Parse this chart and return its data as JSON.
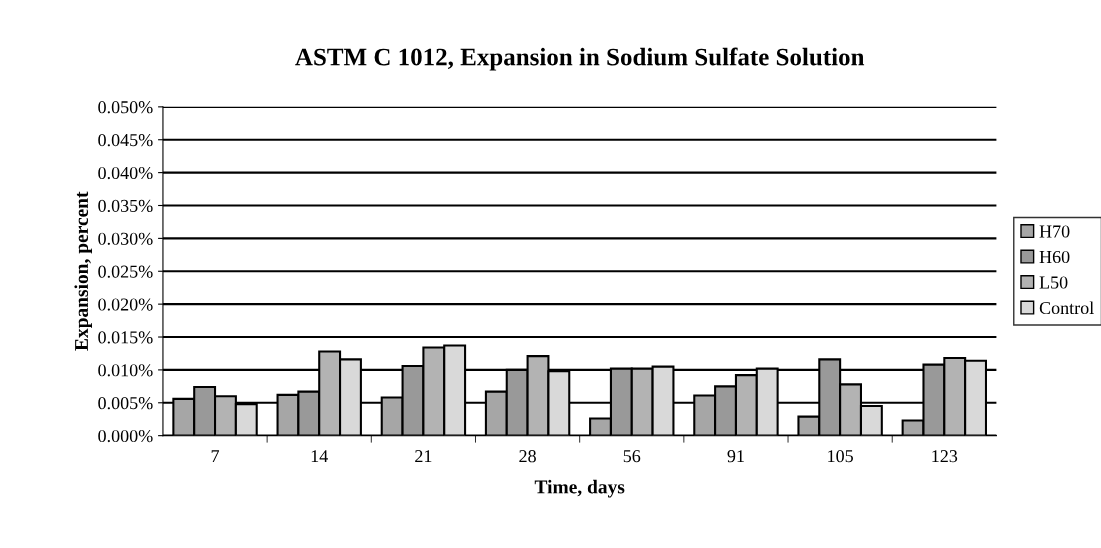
{
  "chart_data": {
    "type": "bar",
    "title": "ASTM C 1012, Expansion in Sodium Sulfate Solution",
    "xlabel": "Time, days",
    "ylabel": "Expansion, percent",
    "categories": [
      "7",
      "14",
      "21",
      "28",
      "56",
      "91",
      "105",
      "123"
    ],
    "series": [
      {
        "name": "H70",
        "color": "#a6a6a6",
        "values": [
          0.0056,
          0.0062,
          0.0058,
          0.0067,
          0.0026,
          0.0061,
          0.0029,
          0.0023
        ]
      },
      {
        "name": "H60",
        "color": "#999999",
        "values": [
          0.0074,
          0.0067,
          0.0106,
          0.01,
          0.0102,
          0.0075,
          0.0116,
          0.0108
        ]
      },
      {
        "name": "L50",
        "color": "#b3b3b3",
        "values": [
          0.006,
          0.0128,
          0.0134,
          0.0121,
          0.0102,
          0.0092,
          0.0078,
          0.0118
        ]
      },
      {
        "name": "Control",
        "color": "#d9d9d9",
        "values": [
          0.0048,
          0.0116,
          0.0137,
          0.0098,
          0.0105,
          0.0102,
          0.0045,
          0.0114
        ]
      }
    ],
    "ylim": [
      0,
      0.05
    ],
    "yticks": [
      {
        "value": 0,
        "label": "0.000%"
      },
      {
        "value": 0.005,
        "label": "0.005%"
      },
      {
        "value": 0.01,
        "label": "0.010%"
      },
      {
        "value": 0.015,
        "label": "0.015%"
      },
      {
        "value": 0.02,
        "label": "0.020%"
      },
      {
        "value": 0.025,
        "label": "0.025%"
      },
      {
        "value": 0.03,
        "label": "0.030%"
      },
      {
        "value": 0.035,
        "label": "0.035%"
      },
      {
        "value": 0.04,
        "label": "0.040%"
      },
      {
        "value": 0.045,
        "label": "0.045%"
      },
      {
        "value": 0.05,
        "label": "0.050%"
      }
    ],
    "grid": "y",
    "legend": "right"
  }
}
